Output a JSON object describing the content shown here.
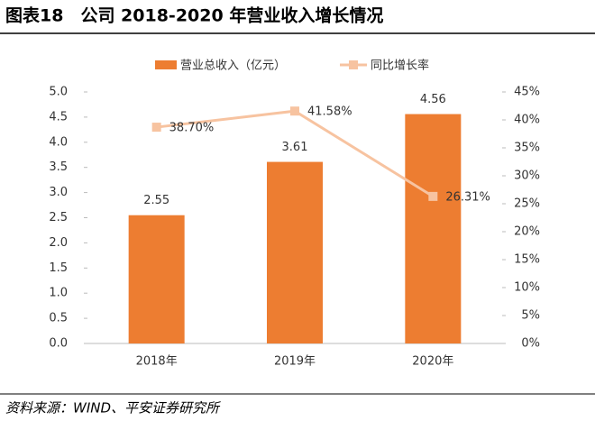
{
  "chart_data": {
    "type": "bar_line",
    "title": "图表18　公司 2018-2020 年营业收入增长情况",
    "source": "资料来源：WIND、平安证券研究所",
    "categories": [
      "2018年",
      "2019年",
      "2020年"
    ],
    "series": [
      {
        "name": "营业总收入（亿元）",
        "type": "bar",
        "color": "#ED7D31",
        "values": [
          2.55,
          3.61,
          4.56
        ]
      },
      {
        "name": "同比增长率",
        "type": "line",
        "axis": "y2",
        "color": "#F7C3A0",
        "values": [
          38.7,
          41.58,
          26.31
        ],
        "value_labels": [
          "38.70%",
          "41.58%",
          "26.31%"
        ]
      }
    ],
    "ylim": [
      0,
      5
    ],
    "yticks": [
      {
        "value": 0,
        "label": "0.0"
      },
      0.5,
      {
        "value": 1,
        "label": "1.0"
      },
      1.5,
      {
        "value": 2,
        "label": "2.0"
      },
      2.5,
      {
        "value": 3,
        "label": "3.0"
      },
      3.5,
      {
        "value": 4,
        "label": "4.0"
      },
      4.5,
      {
        "value": 5,
        "label": "5.0"
      }
    ],
    "y2lim": [
      0,
      45
    ],
    "y2ticks": [
      {
        "value": 0,
        "label": "0%"
      },
      {
        "value": 5,
        "label": "5%"
      },
      {
        "value": 10,
        "label": "10%"
      },
      {
        "value": 15,
        "label": "15%"
      },
      {
        "value": 20,
        "label": "20%"
      },
      {
        "value": 25,
        "label": "25%"
      },
      {
        "value": 30,
        "label": "30%"
      },
      {
        "value": 35,
        "label": "35%"
      },
      {
        "value": 40,
        "label": "40%"
      },
      {
        "value": 45,
        "label": "45%"
      }
    ],
    "legend": "top"
  }
}
